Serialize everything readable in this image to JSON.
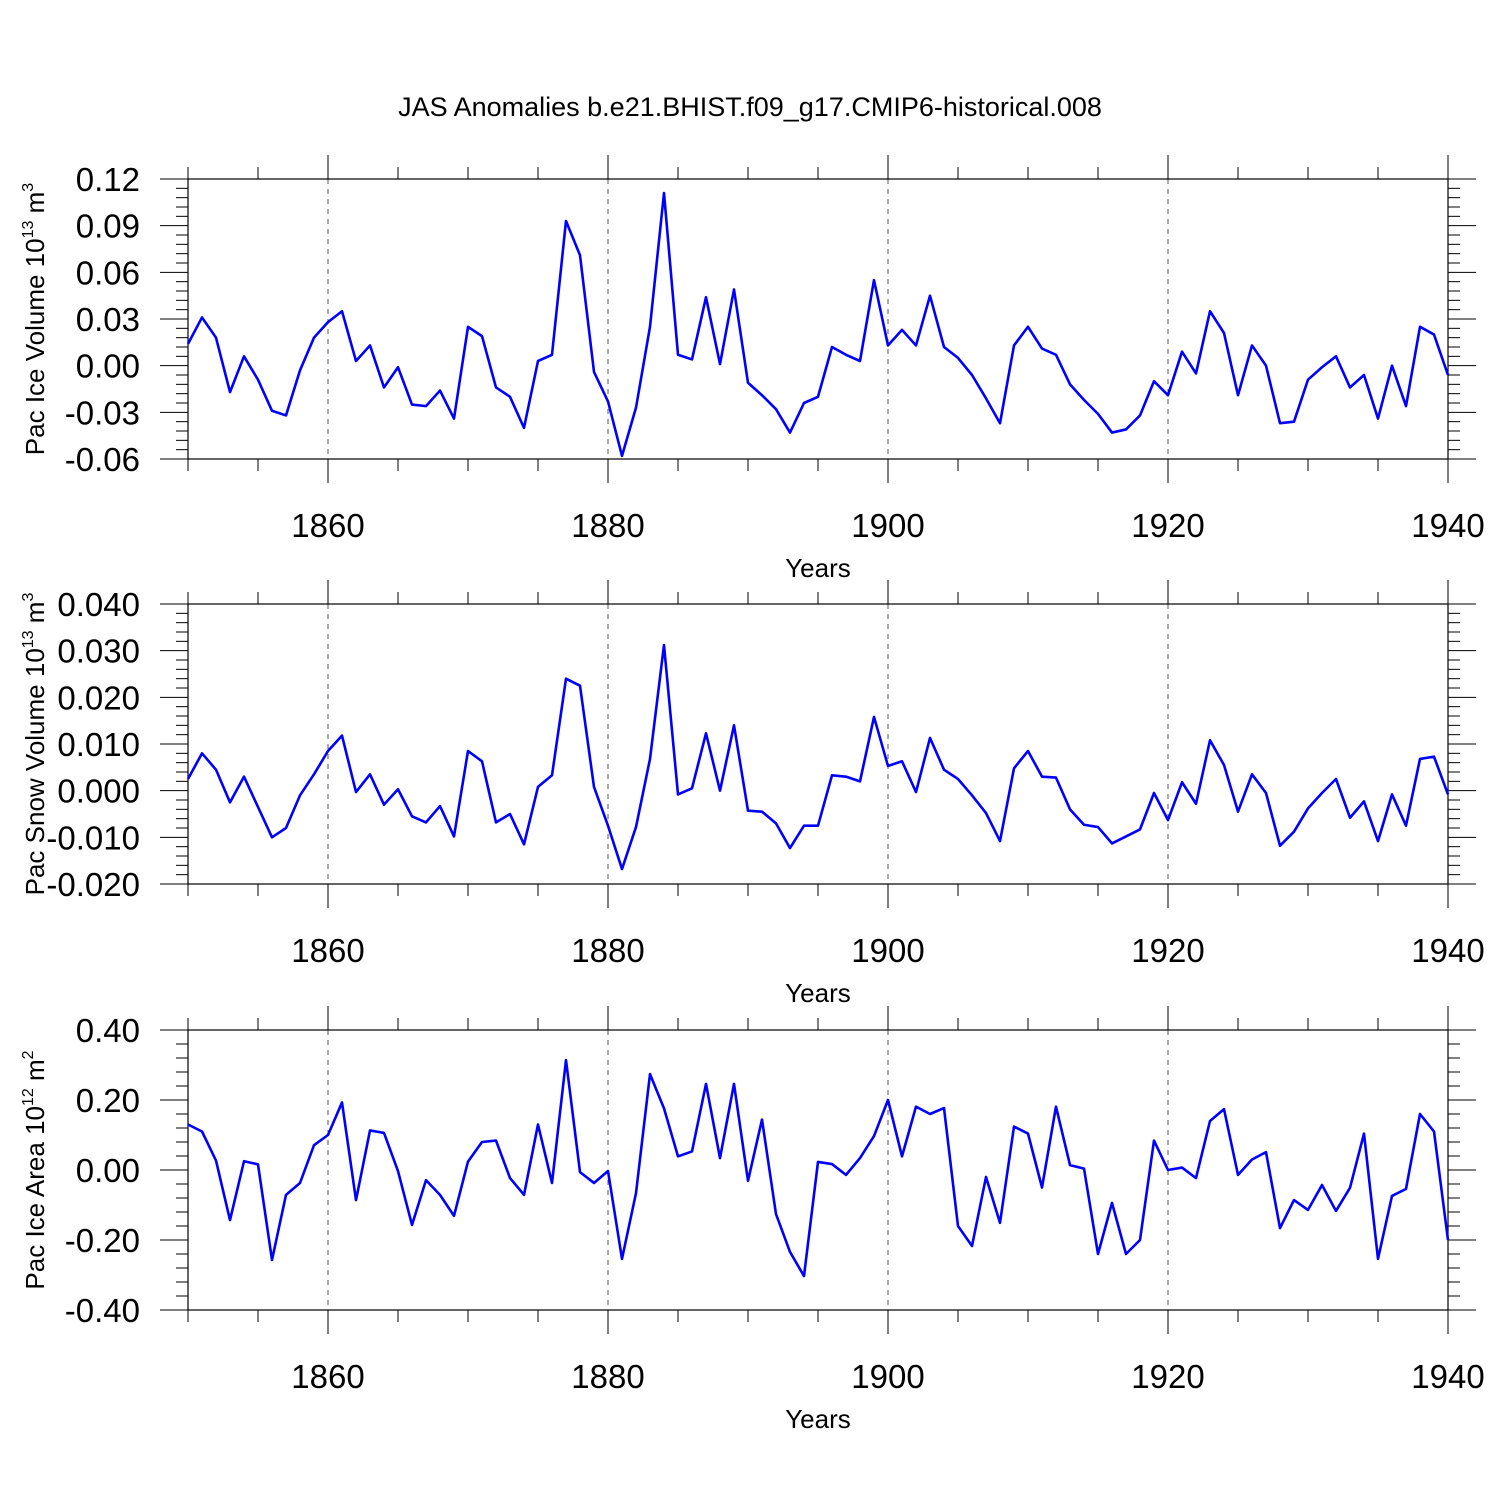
{
  "title": "JAS Anomalies b.e21.BHIST.f09_g17.CMIP6-historical.008",
  "line_color": "#0000ff",
  "chart_data": [
    {
      "type": "line",
      "xlabel": "Years",
      "ylabel_text": "Pac Ice Volume 10",
      "ylabel_exp": "13",
      "ylabel_unit": "m",
      "ylabel_unit_exp": "3",
      "xlim": [
        1850,
        1940
      ],
      "ylim": [
        -0.06,
        0.12
      ],
      "yticks": [
        -0.06,
        -0.03,
        0.0,
        0.03,
        0.06,
        0.09,
        0.12
      ],
      "ytick_labels": [
        "-0.06",
        "-0.03",
        "0.00",
        "0.03",
        "0.06",
        "0.09",
        "0.12"
      ],
      "xticks": [
        1860,
        1880,
        1900,
        1920,
        1940
      ],
      "xtick_labels": [
        "1860",
        "1880",
        "1900",
        "1920",
        "1940"
      ],
      "grid": "dashed vertical at major x ticks",
      "series": [
        {
          "x_start": 1850,
          "values": [
            0.014,
            0.031,
            0.018,
            -0.017,
            0.006,
            -0.009,
            -0.029,
            -0.032,
            -0.003,
            0.018,
            0.028,
            0.035,
            0.003,
            0.013,
            -0.014,
            -0.001,
            -0.025,
            -0.026,
            -0.016,
            -0.034,
            0.025,
            0.019,
            -0.014,
            -0.02,
            -0.04,
            0.003,
            0.007,
            0.093,
            0.071,
            -0.004,
            -0.023,
            -0.058,
            -0.027,
            0.025,
            0.111,
            0.007,
            0.004,
            0.044,
            0.001,
            0.049,
            -0.011,
            -0.019,
            -0.028,
            -0.043,
            -0.024,
            -0.02,
            0.012,
            0.007,
            0.003,
            0.055,
            0.013,
            0.023,
            0.013,
            0.045,
            0.012,
            0.005,
            -0.006,
            -0.021,
            -0.037,
            0.013,
            0.025,
            0.011,
            0.007,
            -0.012,
            -0.022,
            -0.031,
            -0.043,
            -0.041,
            -0.032,
            -0.01,
            -0.019,
            0.009,
            -0.005,
            0.035,
            0.021,
            -0.019,
            0.013,
            0.0,
            -0.037,
            -0.036,
            -0.009,
            -0.001,
            0.006,
            -0.014,
            -0.006,
            -0.034,
            0.0,
            -0.026,
            0.025,
            0.02,
            -0.006
          ]
        }
      ]
    },
    {
      "type": "line",
      "xlabel": "Years",
      "ylabel_text": "Pac Snow Volume 10",
      "ylabel_exp": "13",
      "ylabel_unit": "m",
      "ylabel_unit_exp": "3",
      "xlim": [
        1850,
        1940
      ],
      "ylim": [
        -0.02,
        0.04
      ],
      "yticks": [
        -0.02,
        -0.01,
        0.0,
        0.01,
        0.02,
        0.03,
        0.04
      ],
      "ytick_labels": [
        "-0.020",
        "-0.010",
        "0.000",
        "0.010",
        "0.020",
        "0.030",
        "0.040"
      ],
      "xticks": [
        1860,
        1880,
        1900,
        1920,
        1940
      ],
      "xtick_labels": [
        "1860",
        "1880",
        "1900",
        "1920",
        "1940"
      ],
      "grid": "dashed vertical at major x ticks",
      "series": [
        {
          "x_start": 1850,
          "values": [
            0.0025,
            0.008,
            0.0045,
            -0.0025,
            0.003,
            -0.0035,
            -0.01,
            -0.008,
            -0.001,
            0.0035,
            0.0085,
            0.0118,
            -0.0003,
            0.0035,
            -0.003,
            0.0003,
            -0.0055,
            -0.0068,
            -0.0033,
            -0.0098,
            0.0085,
            0.0063,
            -0.0068,
            -0.005,
            -0.0115,
            0.0008,
            0.0033,
            0.024,
            0.0225,
            0.0008,
            -0.0075,
            -0.0168,
            -0.0078,
            0.0068,
            0.0312,
            -0.0008,
            0.0005,
            0.0123,
            0.0,
            0.014,
            -0.0043,
            -0.0045,
            -0.007,
            -0.0123,
            -0.0075,
            -0.0075,
            0.0033,
            0.003,
            0.002,
            0.0158,
            0.0053,
            0.0063,
            -0.0003,
            0.0113,
            0.0045,
            0.0025,
            -0.001,
            -0.0048,
            -0.0108,
            0.0048,
            0.0085,
            0.003,
            0.0028,
            -0.004,
            -0.0073,
            -0.0078,
            -0.0113,
            -0.0098,
            -0.0083,
            -0.0005,
            -0.0063,
            0.0018,
            -0.0028,
            0.0108,
            0.0055,
            -0.0045,
            0.0035,
            -0.0005,
            -0.0118,
            -0.0088,
            -0.0038,
            -0.0005,
            0.0025,
            -0.0058,
            -0.0023,
            -0.0108,
            -0.0008,
            -0.0075,
            0.0068,
            0.0073,
            -0.0008
          ]
        }
      ]
    },
    {
      "type": "line",
      "xlabel": "Years",
      "ylabel_text": "Pac Ice Area 10",
      "ylabel_exp": "12",
      "ylabel_unit": "m",
      "ylabel_unit_exp": "2",
      "xlim": [
        1850,
        1940
      ],
      "ylim": [
        -0.4,
        0.4
      ],
      "yticks": [
        -0.4,
        -0.2,
        0.0,
        0.2,
        0.4
      ],
      "ytick_labels": [
        "-0.40",
        "-0.20",
        "0.00",
        "0.20",
        "0.40"
      ],
      "xticks": [
        1860,
        1880,
        1900,
        1920,
        1940
      ],
      "xtick_labels": [
        "1860",
        "1880",
        "1900",
        "1920",
        "1940"
      ],
      "grid": "dashed vertical at major x ticks",
      "series": [
        {
          "x_start": 1850,
          "values": [
            0.13,
            0.11,
            0.027,
            -0.143,
            0.025,
            0.016,
            -0.257,
            -0.071,
            -0.037,
            0.071,
            0.1,
            0.193,
            -0.086,
            0.113,
            0.106,
            -0.003,
            -0.157,
            -0.029,
            -0.071,
            -0.131,
            0.024,
            0.08,
            0.084,
            -0.023,
            -0.071,
            0.13,
            -0.037,
            0.314,
            -0.006,
            -0.037,
            -0.003,
            -0.254,
            -0.066,
            0.274,
            0.176,
            0.039,
            0.053,
            0.246,
            0.034,
            0.246,
            -0.031,
            0.144,
            -0.126,
            -0.234,
            -0.303,
            0.023,
            0.017,
            -0.014,
            0.034,
            0.097,
            0.2,
            0.039,
            0.181,
            0.16,
            0.177,
            -0.16,
            -0.217,
            -0.02,
            -0.151,
            0.124,
            0.104,
            -0.05,
            0.181,
            0.014,
            0.004,
            -0.24,
            -0.094,
            -0.24,
            -0.2,
            0.084,
            0.0,
            0.007,
            -0.023,
            0.14,
            0.174,
            -0.014,
            0.03,
            0.051,
            -0.166,
            -0.086,
            -0.114,
            -0.043,
            -0.117,
            -0.051,
            0.104,
            -0.254,
            -0.074,
            -0.054,
            0.16,
            0.11,
            -0.2
          ]
        }
      ]
    }
  ]
}
